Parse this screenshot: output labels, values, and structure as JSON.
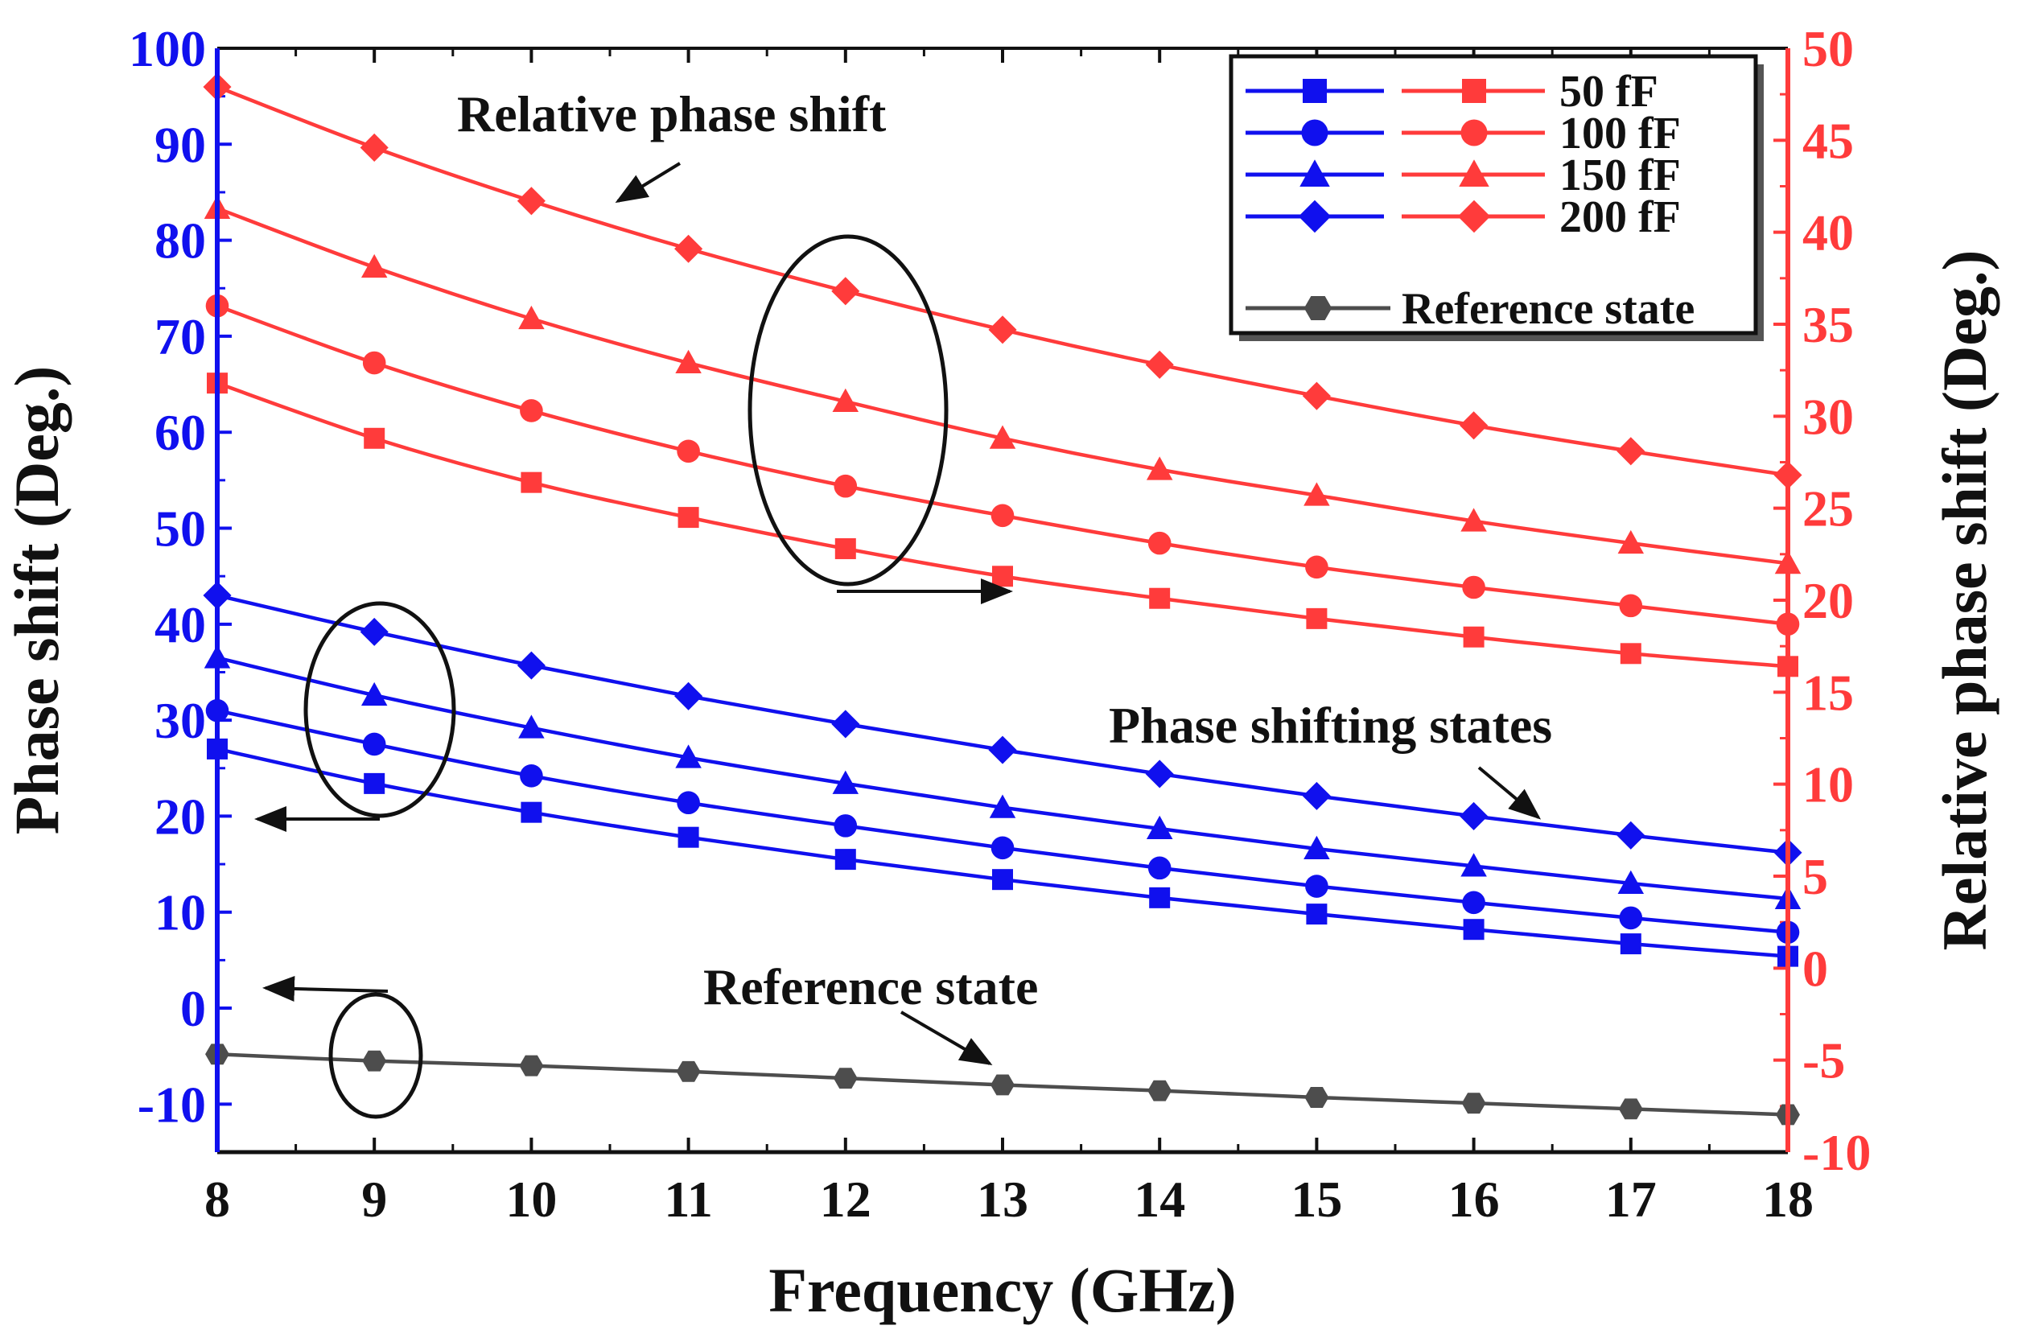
{
  "chart_data": {
    "type": "line",
    "xlabel": "Frequency (GHz)",
    "ylabel_left": "Phase shift (Deg.)",
    "ylabel_right": "Relative phase shift (Deg.)",
    "xlim": [
      8,
      18
    ],
    "ylim_left": [
      -15,
      100
    ],
    "ylim_right": [
      -10,
      50
    ],
    "x": [
      8,
      9,
      10,
      11,
      12,
      13,
      14,
      15,
      16,
      17,
      18
    ],
    "x_tick_labels": [
      "8",
      "9",
      "10",
      "11",
      "12",
      "13",
      "14",
      "15",
      "16",
      "17",
      "18"
    ],
    "y_left_ticks": [
      100,
      90,
      80,
      70,
      60,
      50,
      40,
      30,
      20,
      10,
      0,
      -10
    ],
    "y_left_tick_labels": [
      "100",
      "90",
      "80",
      "70",
      "60",
      "50",
      "40",
      "30",
      "20",
      "10",
      "0",
      "-10"
    ],
    "y_right_ticks": [
      50,
      45,
      40,
      35,
      30,
      25,
      20,
      15,
      10,
      5,
      0,
      -5,
      -10
    ],
    "y_right_tick_labels": [
      "50",
      "45",
      "40",
      "35",
      "30",
      "25",
      "20",
      "15",
      "10",
      "5",
      "0",
      "-5",
      "-10"
    ],
    "colors": {
      "left_axis": "#1010ee",
      "right_axis": "#ff3b3b",
      "reference": "#4d4d4d",
      "frame": "#111111"
    },
    "series": [
      {
        "name": "50 fF",
        "axis": "left",
        "marker": "square",
        "color": "#1010ee",
        "values": [
          27,
          23.4,
          20.4,
          17.8,
          15.5,
          13.4,
          11.5,
          9.8,
          8.2,
          6.7,
          5.4
        ]
      },
      {
        "name": "100 fF",
        "axis": "left",
        "marker": "circle",
        "color": "#1010ee",
        "values": [
          31,
          27.5,
          24.2,
          21.4,
          19,
          16.7,
          14.6,
          12.7,
          11,
          9.4,
          7.9
        ]
      },
      {
        "name": "150 fF",
        "axis": "left",
        "marker": "triangle",
        "color": "#1010ee",
        "values": [
          36.5,
          32.6,
          29.2,
          26.1,
          23.4,
          20.9,
          18.7,
          16.6,
          14.8,
          13,
          11.4
        ]
      },
      {
        "name": "200 fF",
        "axis": "left",
        "marker": "diamond",
        "color": "#1010ee",
        "values": [
          43,
          39.2,
          35.7,
          32.5,
          29.6,
          26.9,
          24.4,
          22.1,
          20,
          18,
          16.2
        ]
      },
      {
        "name": "50 fF",
        "axis": "right",
        "marker": "square",
        "color": "#ff3b3b",
        "values": [
          31.8,
          28.8,
          26.4,
          24.5,
          22.8,
          21.3,
          20.1,
          19,
          18,
          17.1,
          16.4
        ]
      },
      {
        "name": "100 fF",
        "axis": "right",
        "marker": "circle",
        "color": "#ff3b3b",
        "values": [
          36,
          32.9,
          30.3,
          28.1,
          26.2,
          24.6,
          23.1,
          21.8,
          20.7,
          19.7,
          18.7
        ]
      },
      {
        "name": "150 fF",
        "axis": "right",
        "marker": "triangle",
        "color": "#ff3b3b",
        "values": [
          41.3,
          38.1,
          35.3,
          32.9,
          30.8,
          28.8,
          27.1,
          25.7,
          24.3,
          23.1,
          22
        ]
      },
      {
        "name": "200 fF",
        "axis": "right",
        "marker": "diamond",
        "color": "#ff3b3b",
        "values": [
          47.9,
          44.6,
          41.7,
          39.1,
          36.8,
          34.7,
          32.8,
          31.1,
          29.5,
          28.1,
          26.8
        ]
      },
      {
        "name": "Reference state",
        "axis": "left",
        "marker": "hexagon",
        "color": "#4d4d4d",
        "values": [
          -4.8,
          -5.5,
          -6,
          -6.6,
          -7.3,
          -8,
          -8.6,
          -9.3,
          -9.9,
          -10.5,
          -11.1
        ]
      }
    ],
    "legend": {
      "position": "top-right",
      "entries": [
        "50 fF",
        "100 fF",
        "150 fF",
        "200 fF",
        "Reference state"
      ]
    },
    "annotations": [
      {
        "text": "Relative phase shift"
      },
      {
        "text": "Phase shifting states"
      },
      {
        "text": "Reference state"
      }
    ]
  }
}
